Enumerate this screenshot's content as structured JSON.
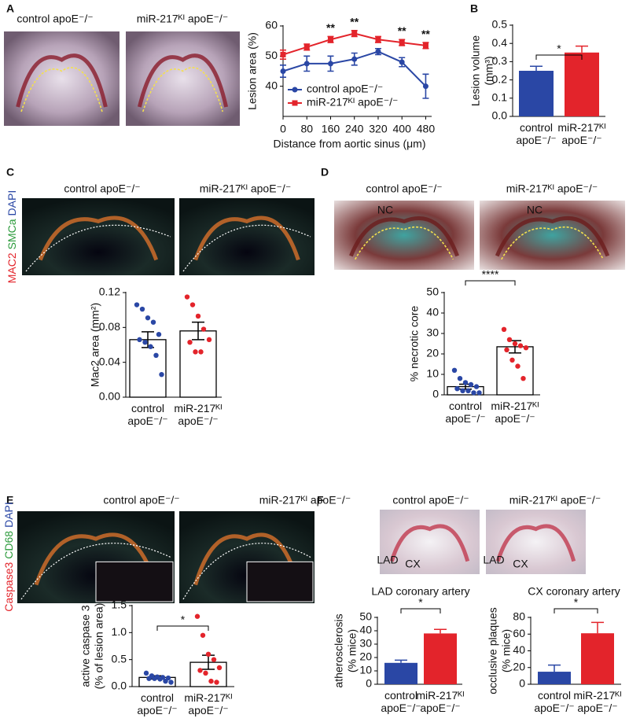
{
  "figure": {
    "panel_letters": [
      "A",
      "B",
      "C",
      "D",
      "E",
      "F"
    ],
    "image_labels": [
      "control apoE⁻/⁻",
      "miR-217ᴷᴵ apoE⁻/⁻",
      "control apoE⁻/⁻",
      "miR-217ᴷᴵ apoE⁻/⁻",
      "control apoE⁻/⁻",
      "miR-217ᴷᴵ apoE⁻/⁻",
      "control apoE⁻/⁻",
      "miR-217ᴷᴵ apoE⁻/⁻",
      "control apoE⁻/⁻",
      "miR-217ᴷᴵ apoE⁻/⁻"
    ],
    "stains": [
      [
        "MAC2",
        "SMCa",
        "DAPI"
      ],
      [
        "Caspase3",
        "CD68",
        "DAPI"
      ]
    ],
    "image_notes": [
      "NC",
      "NC",
      "LAD",
      "CX",
      "LAD",
      "CX"
    ]
  },
  "chart_data": [
    {
      "type": "line",
      "ylabel": [
        "Lesion area (%)"
      ],
      "xlabel": "Distance from aortic sinus (μm)",
      "x": [
        0,
        80,
        160,
        240,
        320,
        400,
        480
      ],
      "xlim": [
        0,
        500
      ],
      "xticks": [
        0,
        80,
        160,
        240,
        320,
        400,
        480
      ],
      "ylim": [
        30,
        60
      ],
      "yticks": [
        40,
        50,
        60
      ],
      "series": [
        {
          "name": "control apoE⁻/⁻",
          "color": "#2a47a5",
          "values": [
            45,
            47.5,
            47.5,
            49,
            51.5,
            48,
            40
          ],
          "errors": [
            2,
            2.5,
            2.5,
            2,
            1,
            1.5,
            4
          ]
        },
        {
          "name": "miR-217ᴷᴵ apoE⁻/⁻",
          "color": "#e3242b",
          "values": [
            50.5,
            53,
            55.5,
            57.5,
            55.5,
            54.5,
            53.5
          ],
          "errors": [
            1.5,
            1,
            1,
            1,
            1,
            1,
            1
          ]
        }
      ],
      "annotations": [
        {
          "x": 160,
          "text": "**"
        },
        {
          "x": 240,
          "text": "**"
        },
        {
          "x": 400,
          "text": "**"
        },
        {
          "x": 480,
          "text": "**"
        }
      ]
    },
    {
      "type": "bar",
      "ylabel": [
        "Lesion volume",
        "(mm³)"
      ],
      "categories": [
        "control apoE⁻/⁻",
        "miR-217ᴷᴵ apoE⁻/⁻"
      ],
      "values": [
        0.25,
        0.35
      ],
      "errors": [
        0.025,
        0.035
      ],
      "colors": [
        "#2a47a5",
        "#e3242b"
      ],
      "style": "filled",
      "ylim": [
        0,
        0.5
      ],
      "yticks": [
        {
          "value": 0,
          "label": "0.0"
        },
        {
          "value": 0.1,
          "label": "0.1"
        },
        {
          "value": 0.2,
          "label": "0.2"
        },
        {
          "value": 0.3,
          "label": "0.3"
        },
        {
          "value": 0.4,
          "label": "0.4"
        },
        {
          "value": 0.5,
          "label": "0.5"
        }
      ],
      "significance": "*"
    },
    {
      "type": "bar",
      "ylabel": [
        "Mac2 area (mm²)"
      ],
      "categories": [
        "control apoE⁻/⁻",
        "miR-217ᴷᴵ apoE⁻/⁻"
      ],
      "values": [
        0.066,
        0.076
      ],
      "errors": [
        0.009,
        0.01
      ],
      "colors": [
        "#2a47a5",
        "#e3242b"
      ],
      "style": "outline",
      "points": [
        [
          0.106,
          0.101,
          0.091,
          0.086,
          0.072,
          0.066,
          0.063,
          0.058,
          0.048,
          0.026
        ],
        [
          0.115,
          0.106,
          0.093,
          0.078,
          0.066,
          0.063,
          0.052,
          0.052
        ]
      ],
      "ylim": [
        0,
        0.12
      ],
      "yticks": [
        {
          "value": 0,
          "label": "0.00"
        },
        {
          "value": 0.04,
          "label": "0.04"
        },
        {
          "value": 0.08,
          "label": "0.08"
        },
        {
          "value": 0.12,
          "label": "0.12"
        }
      ]
    },
    {
      "type": "bar",
      "ylabel": [
        "% necrotic core"
      ],
      "categories": [
        "control apoE⁻/⁻",
        "miR-217ᴷᴵ apoE⁻/⁻"
      ],
      "values": [
        4,
        23.5
      ],
      "errors": [
        1.2,
        3
      ],
      "colors": [
        "#2a47a5",
        "#e3242b"
      ],
      "style": "outline",
      "points": [
        [
          12,
          8,
          6,
          5,
          4,
          3,
          2,
          2,
          1,
          1
        ],
        [
          32,
          27,
          25,
          24,
          23,
          22,
          17,
          14,
          8
        ]
      ],
      "ylim": [
        0,
        50
      ],
      "yticks": [
        0,
        10,
        20,
        30,
        40,
        50
      ],
      "significance": "****"
    },
    {
      "type": "bar",
      "ylabel": [
        "active caspase 3",
        "(% of lesion area)"
      ],
      "categories": [
        "control apoE⁻/⁻",
        "miR-217ᴷᴵ apoE⁻/⁻"
      ],
      "values": [
        0.17,
        0.45
      ],
      "errors": [
        0.03,
        0.13
      ],
      "colors": [
        "#2a47a5",
        "#e3242b"
      ],
      "style": "outline",
      "points": [
        [
          0.25,
          0.2,
          0.18,
          0.17,
          0.16,
          0.15,
          0.15,
          0.14,
          0.1,
          0.08
        ],
        [
          1.3,
          0.95,
          0.6,
          0.5,
          0.35,
          0.3,
          0.25,
          0.1,
          0.08
        ]
      ],
      "ylim": [
        0,
        1.5
      ],
      "yticks": [
        {
          "value": 0,
          "label": "0.0"
        },
        {
          "value": 0.5,
          "label": "0.5"
        },
        {
          "value": 1,
          "label": "1.0"
        },
        {
          "value": 1.5,
          "label": "1.5"
        }
      ],
      "significance": "*"
    },
    {
      "type": "bar",
      "title": "LAD coronary artery",
      "ylabel": [
        "atherosclerosis",
        "(% mice)"
      ],
      "categories": [
        "control apoE⁻/⁻",
        "miR-217ᴷᴵ apoE⁻/⁻"
      ],
      "values": [
        16,
        38
      ],
      "errors": [
        2,
        3
      ],
      "colors": [
        "#2a47a5",
        "#e3242b"
      ],
      "style": "filled",
      "ylim": [
        0,
        50
      ],
      "yticks": [
        0,
        10,
        20,
        30,
        40,
        50
      ],
      "significance": "*"
    },
    {
      "type": "bar",
      "title": "CX coronary artery",
      "ylabel": [
        "occlusive plaques",
        "(% mice)"
      ],
      "categories": [
        "control apoE⁻/⁻",
        "miR-217ᴷᴵ apoE⁻/⁻"
      ],
      "values": [
        15,
        61
      ],
      "errors": [
        8,
        13
      ],
      "colors": [
        "#2a47a5",
        "#e3242b"
      ],
      "style": "filled",
      "ylim": [
        0,
        80
      ],
      "yticks": [
        0,
        20,
        40,
        60,
        80
      ],
      "significance": "*"
    }
  ]
}
